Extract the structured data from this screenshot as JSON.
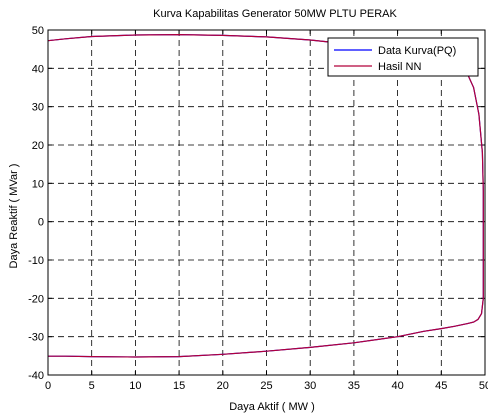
{
  "chart_data": {
    "type": "line",
    "title": "Kurva Kapabilitas Generator 50MW PLTU PERAK",
    "xlabel": "Daya Aktif ( MW )",
    "ylabel": "Daya Reaktif ( MVar )",
    "xlim": [
      0,
      50
    ],
    "ylim": [
      -40,
      50
    ],
    "xticks": [
      "0",
      "5",
      "10",
      "15",
      "20",
      "25",
      "30",
      "35",
      "40",
      "45",
      "50"
    ],
    "yticks": [
      "-40",
      "-30",
      "-20",
      "-10",
      "0",
      "10",
      "20",
      "30",
      "40",
      "50"
    ],
    "grid": true,
    "legend_position": "top-right",
    "colors": {
      "data_kurva": "#0000ff",
      "hasil_nn": "#b2003a"
    },
    "series": [
      {
        "name": "Data Kurva(PQ)",
        "x": [
          0,
          2,
          5,
          10,
          15,
          20,
          25,
          30,
          35,
          40,
          43,
          45,
          46.5,
          47.8,
          48.7,
          49.3,
          49.7,
          49.8,
          49.8,
          49.8,
          49.8,
          49.6,
          49.2,
          48.7,
          48,
          46.5,
          45,
          43,
          40,
          35,
          30,
          25,
          20,
          15,
          10,
          5,
          2,
          0
        ],
        "y": [
          47.2,
          47.7,
          48.3,
          48.7,
          48.8,
          48.6,
          48.2,
          47.4,
          46.2,
          44.6,
          43.5,
          42.5,
          41.3,
          39.5,
          35,
          28,
          18,
          8,
          -2,
          -10,
          -20,
          -24,
          -25.5,
          -26.2,
          -26.6,
          -27.3,
          -27.9,
          -28.6,
          -30,
          -31.6,
          -32.8,
          -33.8,
          -34.6,
          -35.2,
          -35.3,
          -35.2,
          -35.1,
          -35.1
        ]
      },
      {
        "name": "Hasil NN",
        "x": [
          0,
          2,
          5,
          10,
          15,
          20,
          25,
          30,
          35,
          40,
          43,
          45,
          46.5,
          47.8,
          48.7,
          49.3,
          49.7,
          49.8,
          49.8,
          49.8,
          49.8,
          49.6,
          49.2,
          48.7,
          48,
          46.5,
          45,
          43,
          40,
          35,
          30,
          25,
          20,
          15,
          10,
          5,
          2,
          0
        ],
        "y": [
          47.2,
          47.7,
          48.3,
          48.7,
          48.8,
          48.6,
          48.2,
          47.4,
          46.2,
          44.6,
          43.5,
          42.5,
          41.3,
          39.5,
          35,
          28,
          18,
          8,
          -2,
          -10,
          -20,
          -24,
          -25.5,
          -26.2,
          -26.6,
          -27.3,
          -27.9,
          -28.6,
          -30,
          -31.6,
          -32.8,
          -33.8,
          -34.6,
          -35.2,
          -35.3,
          -35.2,
          -35.1,
          -35.1
        ]
      }
    ]
  }
}
